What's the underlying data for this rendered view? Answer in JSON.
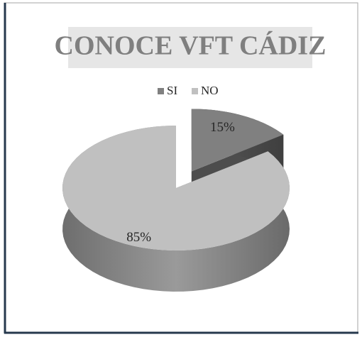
{
  "chart_data": {
    "type": "pie",
    "title": "CONOCE VFT CÁDIZ",
    "categories": [
      "SI",
      "NO"
    ],
    "values": [
      15,
      85
    ],
    "value_labels": [
      "15%",
      "85%"
    ],
    "colors": [
      "#808080",
      "#c0c0c0"
    ],
    "legend": "top"
  }
}
